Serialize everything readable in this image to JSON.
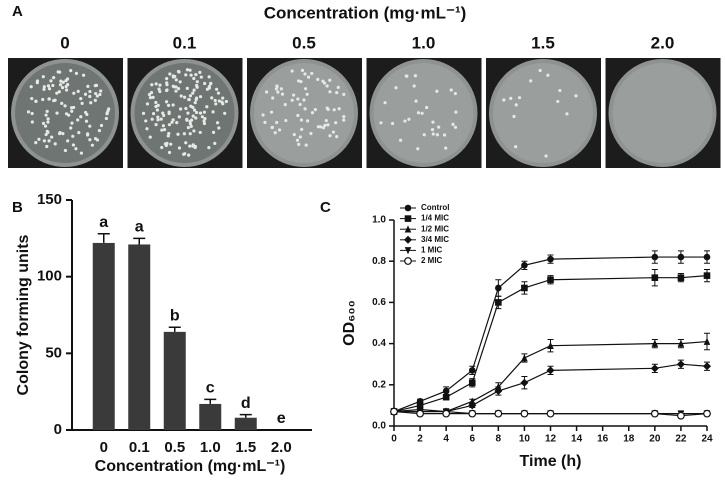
{
  "chart_data": [
    {
      "type": "plates",
      "panel_label": "A",
      "title": "Concentration (mg·mL⁻¹)",
      "categories": [
        "0",
        "0.1",
        "0.5",
        "1.0",
        "1.5",
        "2.0"
      ]
    },
    {
      "type": "bar",
      "panel_label": "B",
      "x_label": "Concentration (mg·mL⁻¹)",
      "y_label": "Colony forming units",
      "categories": [
        "0",
        "0.1",
        "0.5",
        "1.0",
        "1.5",
        "2.0"
      ],
      "values": [
        122,
        121,
        64,
        17,
        8,
        0
      ],
      "errors": [
        6,
        4,
        3,
        3,
        2,
        0
      ],
      "annotations": [
        "a",
        "a",
        "b",
        "c",
        "d",
        "e"
      ],
      "color": "#3a3a3a",
      "ylim": [
        0,
        150
      ],
      "yticks": [
        0,
        50,
        100,
        150
      ]
    },
    {
      "type": "line",
      "panel_label": "C",
      "x_label": "Time (h)",
      "y_label": "OD₆₀₀",
      "x": [
        0,
        2,
        4,
        6,
        8,
        10,
        12,
        20,
        22,
        24
      ],
      "series": [
        {
          "name": "Control",
          "marker": "circle",
          "color": "#111111",
          "values": [
            0.07,
            0.12,
            0.17,
            0.27,
            0.67,
            0.78,
            0.81,
            0.82,
            0.82,
            0.82
          ],
          "errors": [
            0.01,
            0.01,
            0.02,
            0.02,
            0.04,
            0.02,
            0.02,
            0.03,
            0.03,
            0.03
          ]
        },
        {
          "name": "1/4 MIC",
          "marker": "square",
          "color": "#111111",
          "values": [
            0.07,
            0.1,
            0.14,
            0.21,
            0.6,
            0.67,
            0.71,
            0.72,
            0.72,
            0.73
          ],
          "errors": [
            0.01,
            0.01,
            0.01,
            0.02,
            0.03,
            0.03,
            0.02,
            0.04,
            0.02,
            0.03
          ]
        },
        {
          "name": "1/2 MIC",
          "marker": "triangle",
          "color": "#111111",
          "values": [
            0.07,
            0.08,
            0.07,
            0.12,
            0.19,
            0.33,
            0.39,
            0.4,
            0.4,
            0.41
          ],
          "errors": [
            0.01,
            0.01,
            0.01,
            0.01,
            0.02,
            0.02,
            0.03,
            0.02,
            0.02,
            0.04
          ]
        },
        {
          "name": "3/4 MIC",
          "marker": "diamond",
          "color": "#111111",
          "values": [
            0.07,
            0.07,
            0.07,
            0.1,
            0.17,
            0.21,
            0.27,
            0.28,
            0.3,
            0.29
          ],
          "errors": [
            0.01,
            0.01,
            0.01,
            0.01,
            0.02,
            0.03,
            0.02,
            0.02,
            0.02,
            0.02
          ]
        },
        {
          "name": "1 MIC",
          "marker": "down-triangle",
          "color": "#111111",
          "values": [
            0.07,
            0.07,
            0.07,
            0.06,
            0.06,
            0.06,
            0.06,
            0.06,
            0.06,
            0.06
          ],
          "errors": [
            0.01,
            0.01,
            0.01,
            0.01,
            0.01,
            0.01,
            0.01,
            0.01,
            0.01,
            0.01
          ]
        },
        {
          "name": "2 MIC",
          "marker": "open-circle",
          "color": "#111111",
          "values": [
            0.07,
            0.06,
            0.06,
            0.06,
            0.06,
            0.06,
            0.06,
            0.06,
            0.05,
            0.06
          ],
          "errors": [
            0.01,
            0.01,
            0.01,
            0.01,
            0.01,
            0.01,
            0.01,
            0.01,
            0.01,
            0.01
          ]
        }
      ],
      "xlim": [
        0,
        24
      ],
      "xticks": [
        0,
        2,
        4,
        6,
        8,
        10,
        12,
        14,
        16,
        18,
        20,
        22,
        24
      ],
      "ylim": [
        0,
        1.0
      ],
      "yticks": [
        {
          "value": 0,
          "label": "0.0"
        },
        {
          "value": 0.2,
          "label": "0.2"
        },
        {
          "value": 0.4,
          "label": "0.4"
        },
        {
          "value": 0.6,
          "label": "0.6"
        },
        {
          "value": 0.8,
          "label": "0.8"
        },
        {
          "value": 1.0,
          "label": "1.0"
        }
      ]
    }
  ]
}
